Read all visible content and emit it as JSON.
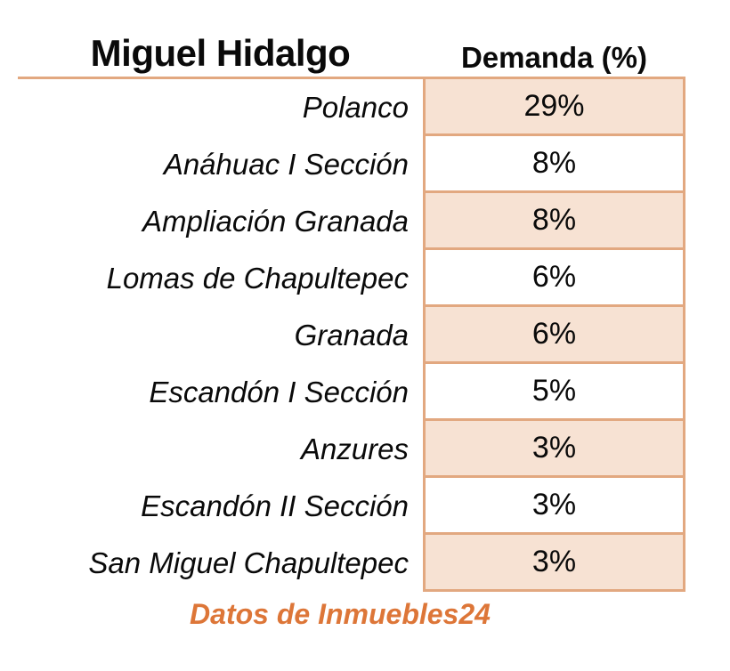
{
  "table": {
    "title": "Miguel Hidalgo",
    "value_header": "Demanda (%)",
    "rows": [
      {
        "name": "Polanco",
        "value": "29%",
        "shaded": true
      },
      {
        "name": "Anáhuac I Sección",
        "value": "8%",
        "shaded": false
      },
      {
        "name": "Ampliación Granada",
        "value": "8%",
        "shaded": true
      },
      {
        "name": "Lomas de Chapultepec",
        "value": "6%",
        "shaded": false
      },
      {
        "name": "Granada",
        "value": "6%",
        "shaded": true
      },
      {
        "name": "Escandón I Sección",
        "value": "5%",
        "shaded": false
      },
      {
        "name": "Anzures",
        "value": "3%",
        "shaded": true
      },
      {
        "name": "Escandón II Sección",
        "value": "3%",
        "shaded": false
      },
      {
        "name": "San Miguel Chapultepec",
        "value": "3%",
        "shaded": true
      }
    ]
  },
  "footer": {
    "source": "Datos de Inmuebles24"
  },
  "colors": {
    "border": "#E2A880",
    "shade": "#F7E2D3",
    "accent_text": "#DD7638"
  },
  "chart_data": {
    "type": "table",
    "title": "Miguel Hidalgo",
    "value_label": "Demanda (%)",
    "categories": [
      "Polanco",
      "Anáhuac I Sección",
      "Ampliación Granada",
      "Lomas de Chapultepec",
      "Granada",
      "Escandón I Sección",
      "Anzures",
      "Escandón II Sección",
      "San Miguel Chapultepec"
    ],
    "values": [
      29,
      8,
      8,
      6,
      6,
      5,
      3,
      3,
      3
    ],
    "unit": "%",
    "source": "Datos de Inmuebles24",
    "layout": "two-column table, category names right-aligned, values centered, odd rows shaded peach"
  }
}
